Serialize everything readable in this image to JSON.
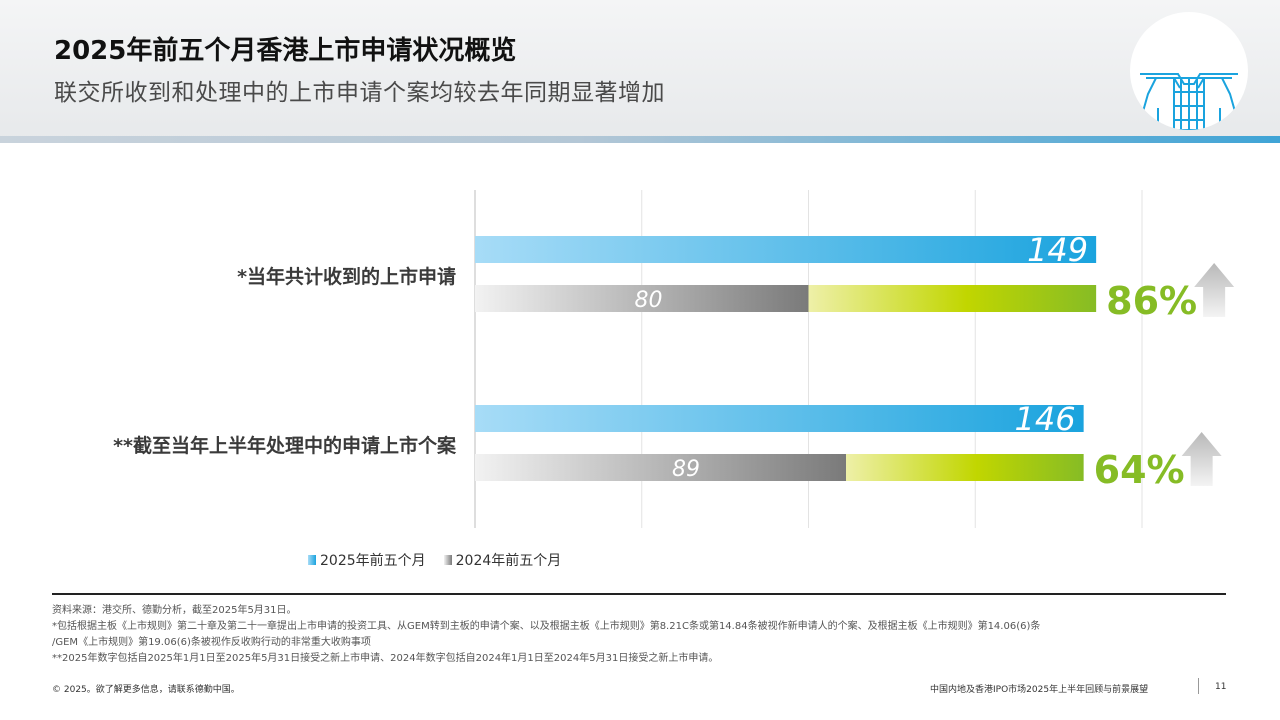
{
  "header": {
    "title": "2025年前五个月香港上市申请状况概览",
    "subtitle": "联交所收到和处理中的上市申请个案均较去年同期显著增加"
  },
  "chart_data": {
    "type": "bar",
    "orientation": "horizontal",
    "categories": [
      "*当年共计收到的上市申请",
      "**截至当年上半年处理中的申请上市个案"
    ],
    "series": [
      {
        "name": "2025年前五个月",
        "values": [
          149,
          146
        ]
      },
      {
        "name": "2024年前五个月",
        "values": [
          80,
          89
        ]
      }
    ],
    "growth_labels": [
      "86%",
      "64%"
    ],
    "xlim": [
      0,
      160
    ],
    "grid": true,
    "legend_position": "bottom-left"
  },
  "legend": {
    "series_2025": "2025年前五个月",
    "series_2024": "2024年前五个月"
  },
  "colors": {
    "bar_2025_start": "#a7dcf7",
    "bar_2025_end": "#1aa3de",
    "bar_2024_start": "#f2f2f2",
    "bar_2024_end": "#7a7a7a",
    "growth_start": "#eef0a8",
    "growth_mid": "#c1d600",
    "growth_end": "#86bc25",
    "growth_text": "#86bc25",
    "arrow": "#c8c8c8"
  },
  "notes": {
    "line1": "资料来源：港交所、德勤分析，截至2025年5月31日。",
    "line2": "*包括根据主板《上市规则》第二十章及第二十一章提出上市申请的投资工具、从GEM转到主板的申请个案、以及根据主板《上市规则》第8.21C条或第14.84条被视作新申请人的个案、及根据主板《上市规则》第14.06(6)条",
    "line3": "/GEM《上市规则》第19.06(6)条被视作反收购行动的非常重大收购事项",
    "line4": "**2025年数字包括自2025年1月1日至2025年5月31日接受之新上市申请、2024年数字包括自2024年1月1日至2024年5月31日接受之新上市申请。"
  },
  "footer": {
    "copyright": "© 2025。欲了解更多信息，请联系德勤中国。",
    "report_title": "中国内地及香港IPO市场2025年上半年回顾与前景展望",
    "page_number": "11"
  },
  "logo": {
    "icon": "hkex-building-icon"
  }
}
